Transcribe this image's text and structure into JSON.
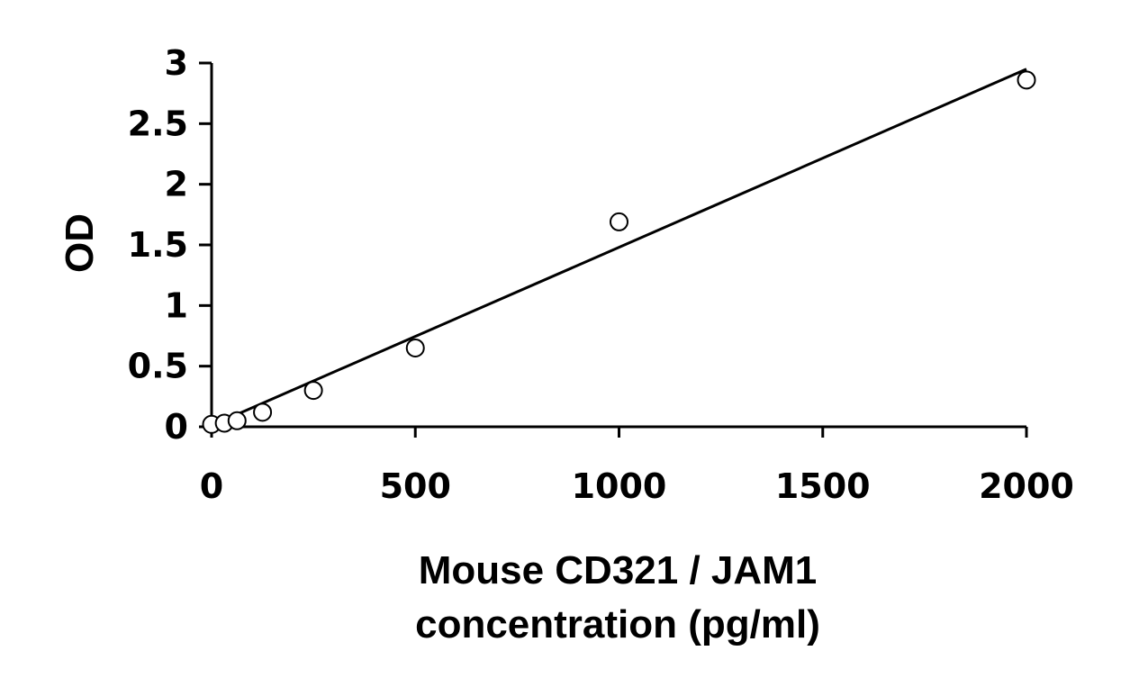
{
  "chart_data": {
    "type": "scatter",
    "title": "",
    "xlabel": [
      "Mouse CD321 / JAM1",
      "concentration (pg/ml)"
    ],
    "ylabel": "OD",
    "xlim": [
      0,
      2000
    ],
    "ylim": [
      0,
      3
    ],
    "xticks": [
      0,
      500,
      1000,
      1500,
      2000
    ],
    "yticks": [
      0,
      0.5,
      1,
      1.5,
      2,
      2.5,
      3
    ],
    "ytick_labels": [
      "0",
      "0.5",
      "1",
      "1.5",
      "2",
      "2.5",
      "3"
    ],
    "grid": false,
    "legend": "none",
    "series": [
      {
        "x": [
          0,
          31.25,
          62.5,
          125,
          250,
          500,
          1000,
          2000
        ],
        "y": [
          0.02,
          0.03,
          0.05,
          0.12,
          0.3,
          0.65,
          1.69,
          2.86
        ]
      }
    ],
    "trendline": {
      "type": "linear",
      "x": [
        20,
        2000
      ],
      "y": [
        0.04,
        2.95
      ]
    },
    "colors": {
      "marker_fill": "#ffffff",
      "marker_stroke": "#000000",
      "line": "#000000"
    }
  }
}
